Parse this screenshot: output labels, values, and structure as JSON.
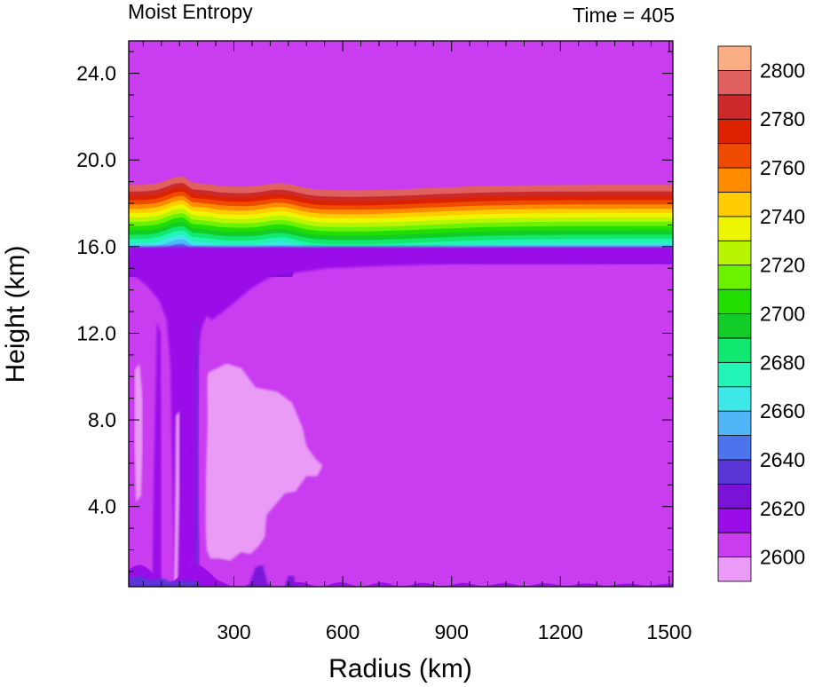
{
  "chart_data": {
    "type": "heatmap",
    "title": "Moist Entropy",
    "subtitle": "Time = 405",
    "xlabel": "Radius (km)",
    "ylabel": "Height (km)",
    "xlim": [
      10,
      1510
    ],
    "ylim": [
      0.3,
      25.5
    ],
    "x_ticks": [
      300,
      600,
      900,
      1200,
      1500
    ],
    "x_tick_labels": [
      "300",
      "600",
      "900",
      "1200",
      "1500"
    ],
    "y_ticks": [
      4,
      8,
      12,
      16,
      20,
      24
    ],
    "y_tick_labels": [
      "4.0",
      "8.0",
      "12.0",
      "16.0",
      "20.0",
      "24.0"
    ],
    "colorbar": {
      "levels": [
        2600,
        2610,
        2620,
        2630,
        2640,
        2650,
        2660,
        2670,
        2680,
        2690,
        2700,
        2710,
        2720,
        2730,
        2740,
        2750,
        2760,
        2770,
        2780,
        2790,
        2800
      ],
      "labels": [
        "2600",
        "2620",
        "2640",
        "2660",
        "2680",
        "2700",
        "2720",
        "2740",
        "2760",
        "2780",
        "2800"
      ],
      "colors": [
        "#E99BF5",
        "#C93CF0",
        "#9A0DE8",
        "#7A12D8",
        "#5A35D8",
        "#4C74EC",
        "#4FB5F7",
        "#3FE8E8",
        "#22F4B5",
        "#10E870",
        "#12CC28",
        "#22DD00",
        "#6AF200",
        "#B8F500",
        "#EDF500",
        "#FFCC00",
        "#FF8C00",
        "#EE4A00",
        "#DD2200",
        "#CC2A2A",
        "#E06060",
        "#F8AE82"
      ]
    },
    "grid": false,
    "legend": "right"
  }
}
